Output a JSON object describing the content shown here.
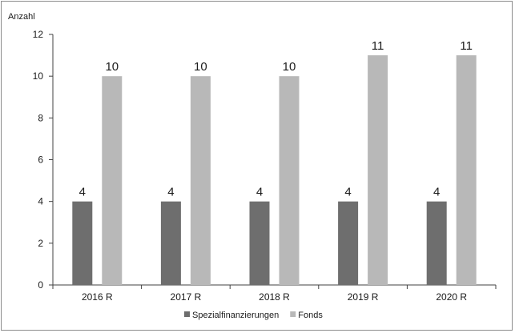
{
  "chart_data": {
    "type": "bar",
    "ylabel": "Anzahl",
    "categories": [
      "2016 R",
      "2017 R",
      "2018 R",
      "2019 R",
      "2020 R"
    ],
    "ylim": [
      0,
      12
    ],
    "yticks": [
      0,
      2,
      4,
      6,
      8,
      10,
      12
    ],
    "grid": false,
    "legend_position": "bottom",
    "series": [
      {
        "name": "Spezialfinanzierungen",
        "values": [
          4,
          4,
          4,
          4,
          4
        ],
        "color": "#6e6e6e"
      },
      {
        "name": "Fonds",
        "values": [
          10,
          10,
          10,
          11,
          11
        ],
        "color": "#b8b8b8"
      }
    ]
  }
}
